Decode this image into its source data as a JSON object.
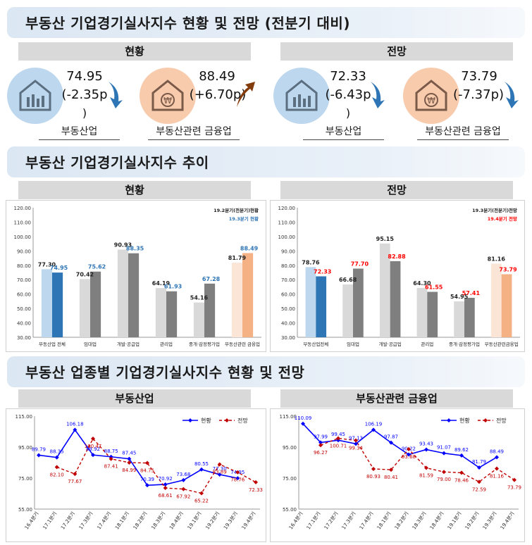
{
  "sections": {
    "status_outlook": "부동산 기업경기실사지수 현황 및 전망 (전분기 대비)",
    "trend": "부동산 기업경기실사지수 추이",
    "by_industry": "부동산 업종별 기업경기실사지수 현황 및 전망"
  },
  "top": {
    "current_header": "현황",
    "outlook_header": "전망",
    "cards": [
      {
        "value": "74.95",
        "change": "(-2.35p",
        "tail": ")",
        "label": "부동산업",
        "icon": "house-chart-icon",
        "arrow": "down"
      },
      {
        "value": "88.49",
        "change": "(+6.70p)",
        "tail": "",
        "label": "부동산관련 금융업",
        "icon": "won-icon",
        "arrow": "up"
      },
      {
        "value": "72.33",
        "change": "(-6.43p",
        "tail": ")",
        "label": "부동산업",
        "icon": "house-chart-icon",
        "arrow": "down"
      },
      {
        "value": "73.79",
        "change": "(-7.37p)",
        "tail": "",
        "label": "부동산관련 금융업",
        "icon": "won-icon",
        "arrow": "down"
      }
    ]
  },
  "bar_headers": {
    "left": "현황",
    "right": "전망"
  },
  "line_headers": {
    "left": "부동산업",
    "right": "부동산관련 금융업"
  },
  "colors": {
    "light_blue": "#bdd7ee",
    "blue": "#2e75b6",
    "light_gray": "#d9d9d9",
    "gray": "#7f7f7f",
    "light_peach": "#fbe5d6",
    "peach": "#f4b183",
    "red": "#c00000",
    "line_blue": "#0000ff",
    "line_red": "#c00000",
    "label_blue": "#2e75b6",
    "label_red": "#ff0000"
  },
  "chart_data": [
    {
      "type": "bar",
      "title": "현황",
      "categories": [
        "부동산업 전체",
        "임대업",
        "개발·공급업",
        "관리업",
        "중개·감정평가업",
        "부동산관련 금융업"
      ],
      "series": [
        {
          "name": "19.2분기(전분기)현황",
          "values": [
            77.3,
            70.42,
            90.93,
            64.19,
            54.16,
            81.79
          ]
        },
        {
          "name": "19.3분기 현황",
          "values": [
            74.95,
            75.62,
            88.35,
            61.93,
            67.28,
            88.49
          ]
        }
      ],
      "ylim": [
        30,
        120
      ],
      "yticks": [
        "30.00",
        "40.00",
        "50.00",
        "60.00",
        "70.00",
        "80.00",
        "90.00",
        "100.00",
        "110.00",
        "120.00"
      ]
    },
    {
      "type": "bar",
      "title": "전망",
      "categories": [
        "부동산업전체",
        "임대업",
        "개발·공급업",
        "관리업",
        "중개·감정평가업",
        "부동산관련금융업"
      ],
      "series": [
        {
          "name": "19.3분기(전분기)전망",
          "values": [
            78.76,
            66.68,
            95.15,
            64.3,
            54.95,
            81.16
          ]
        },
        {
          "name": "19.4분기 전망",
          "values": [
            72.33,
            77.7,
            82.88,
            61.55,
            57.41,
            73.79
          ]
        }
      ],
      "ylim": [
        30,
        120
      ],
      "yticks": [
        "30.00",
        "40.00",
        "50.00",
        "60.00",
        "70.00",
        "80.00",
        "90.00",
        "100.00",
        "110.00",
        "120.00"
      ]
    },
    {
      "type": "line",
      "title": "부동산업",
      "x": [
        "16.4분기",
        "17.1분기",
        "17.2분기",
        "17.3분기",
        "17.4분기",
        "18.1분기",
        "18.2분기",
        "18.3분기",
        "18.4분기",
        "19.1분기",
        "19.2분기",
        "19.3분기",
        "19.4분기"
      ],
      "series": [
        {
          "name": "현황",
          "values": [
            89.79,
            88.35,
            106.18,
            89.92,
            88.75,
            87.45,
            70.39,
            70.92,
            73.68,
            80.55,
            77.3,
            74.95,
            null
          ]
        },
        {
          "name": "전망",
          "values": [
            null,
            82.1,
            77.67,
            100.47,
            87.41,
            84.99,
            84.75,
            68.61,
            67.92,
            65.22,
            83.89,
            78.76,
            72.33
          ]
        }
      ],
      "labels_current": [
        "89.79",
        "88.35",
        "106.18",
        "89.92",
        "88.75",
        "87.45",
        "70.39",
        "70.92",
        "73.68",
        "80.55",
        "77.30",
        "74.95"
      ],
      "labels_outlook": [
        "82.10",
        "77.67",
        "100.47",
        "87.41",
        "84.99",
        "84.75",
        "68.61",
        "67.92",
        "65.22",
        "83.89",
        "78.76",
        "72.33"
      ],
      "ylim": [
        55,
        115
      ],
      "yticks": [
        "55.00",
        "75.00",
        "95.00",
        "115.00"
      ]
    },
    {
      "type": "line",
      "title": "부동산관련 금융업",
      "x": [
        "16.4분기",
        "17.1분기",
        "17.2분기",
        "17.3분기",
        "17.4분기",
        "18.1분기",
        "18.2분기",
        "18.3분기",
        "18.4분기",
        "19.1분기",
        "19.2분기",
        "19.3분기",
        "19.4분기"
      ],
      "series": [
        {
          "name": "현황",
          "values": [
            110.09,
            97.99,
            99.45,
            97.13,
            106.19,
            97.87,
            90.22,
            93.43,
            91.07,
            89.62,
            81.79,
            88.49,
            null
          ]
        },
        {
          "name": "전망",
          "values": [
            null,
            96.27,
            100.71,
            99.34,
            80.93,
            80.41,
            93.68,
            81.59,
            79.0,
            78.46,
            72.59,
            81.16,
            73.79
          ]
        }
      ],
      "labels_current": [
        "110.09",
        "97.99",
        "99.45",
        "97.13",
        "106.19",
        "97.87",
        "90.22",
        "93.43",
        "91.07",
        "89.62",
        "81.79",
        "88.49"
      ],
      "labels_outlook": [
        "96.27",
        "100.71",
        "99.34",
        "80.93",
        "80.41",
        "93.68",
        "81.59",
        "79.00",
        "78.46",
        "72.59",
        "81.16",
        "73.79"
      ],
      "ylim": [
        55,
        115
      ],
      "yticks": [
        "55.00",
        "75.00",
        "95.00",
        "115.00"
      ]
    }
  ]
}
